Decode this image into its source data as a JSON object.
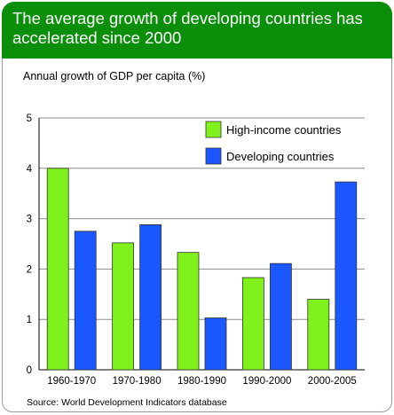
{
  "header": {
    "title": "The average growth of developing countries has accelerated since 2000"
  },
  "subtitle": "Annual  growth of GDP per capita (%)",
  "source": "Source: World Development Indicators database",
  "colors": {
    "header": "#0b8f0b",
    "high_income": "#7ef21a",
    "developing": "#1a57ff"
  },
  "chart_data": {
    "type": "bar",
    "title": "",
    "xlabel": "",
    "ylabel": "",
    "categories": [
      "1960-1970",
      "1970-1980",
      "1980-1990",
      "1990-2000",
      "2000-2005"
    ],
    "series": [
      {
        "name": "High-income countries",
        "values": [
          4.0,
          2.52,
          2.33,
          1.83,
          1.4
        ]
      },
      {
        "name": "Developing countries",
        "values": [
          2.75,
          2.88,
          1.03,
          2.11,
          3.73
        ]
      }
    ],
    "ylim": [
      0,
      5
    ],
    "yticks": [
      0,
      1,
      2,
      3,
      4,
      5
    ],
    "grid": true,
    "legend": "top-right"
  }
}
